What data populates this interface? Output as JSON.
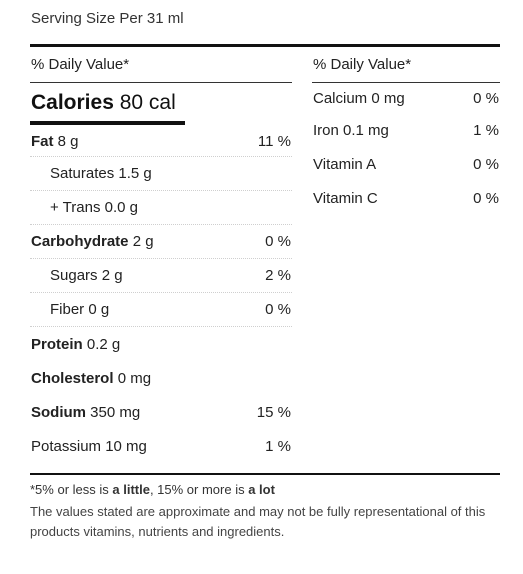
{
  "serving_size": "Serving Size Per 31 ml",
  "left": {
    "header": "% Daily Value*",
    "calories_label": "Calories",
    "calories_value": "80 cal",
    "rows": [
      {
        "label": "Fat",
        "amount": "8 g",
        "pct": "11 %",
        "bold": true,
        "indent": false
      },
      {
        "label": "Saturates",
        "amount": "1.5 g",
        "pct": "",
        "bold": false,
        "indent": true
      },
      {
        "label": "+ Trans",
        "amount": "0.0 g",
        "pct": "",
        "bold": false,
        "indent": true
      },
      {
        "label": "Carbohydrate",
        "amount": "2 g",
        "pct": "0 %",
        "bold": true,
        "indent": false
      },
      {
        "label": "Sugars",
        "amount": "2 g",
        "pct": "2 %",
        "bold": false,
        "indent": true
      },
      {
        "label": "Fiber",
        "amount": "0 g",
        "pct": "0 %",
        "bold": false,
        "indent": true
      },
      {
        "label": "Protein",
        "amount": "0.2 g",
        "pct": "",
        "bold": true,
        "indent": false
      },
      {
        "label": "Cholesterol",
        "amount": "0 mg",
        "pct": "",
        "bold": true,
        "indent": false
      },
      {
        "label": "Sodium",
        "amount": "350 mg",
        "pct": "15 %",
        "bold": true,
        "indent": false
      },
      {
        "label": "Potassium",
        "amount": "10 mg",
        "pct": "1 %",
        "bold": false,
        "indent": false
      }
    ]
  },
  "right": {
    "header": "% Daily Value*",
    "rows": [
      {
        "label": "Calcium",
        "amount": "0 mg",
        "pct": "0 %"
      },
      {
        "label": "Iron",
        "amount": "0.1 mg",
        "pct": "1 %"
      },
      {
        "label": "Vitamin A",
        "amount": "",
        "pct": "0 %"
      },
      {
        "label": "Vitamin C",
        "amount": "",
        "pct": "0 %"
      }
    ]
  },
  "footnote": {
    "prefix": "*5% or less is ",
    "little": "a little",
    "middle": ", 15% or more is ",
    "lot": "a lot"
  },
  "disclaimer": "The values stated are approximate and may not be fully representational of this products vitamins, nutrients and ingredients."
}
